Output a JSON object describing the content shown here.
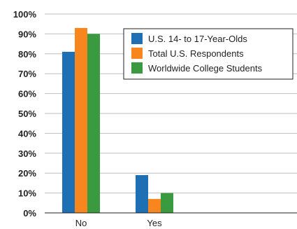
{
  "chart_data": {
    "type": "bar",
    "categories": [
      "No",
      "Yes"
    ],
    "series": [
      {
        "name": "U.S. 14- to 17-Year-Olds",
        "values": [
          81,
          19
        ],
        "color": "#1f6fb5"
      },
      {
        "name": "Total U.S. Respondents",
        "values": [
          93,
          7
        ],
        "color": "#f7861f"
      },
      {
        "name": "Worldwide College Students",
        "values": [
          90,
          10
        ],
        "color": "#3a9a3f"
      }
    ],
    "y_ticks": [
      "0%",
      "10%",
      "20%",
      "30%",
      "40%",
      "50%",
      "60%",
      "70%",
      "80%",
      "90%",
      "100%"
    ],
    "ylim": [
      0,
      100
    ],
    "grid": "horizontal",
    "legend_position": "top-right"
  }
}
